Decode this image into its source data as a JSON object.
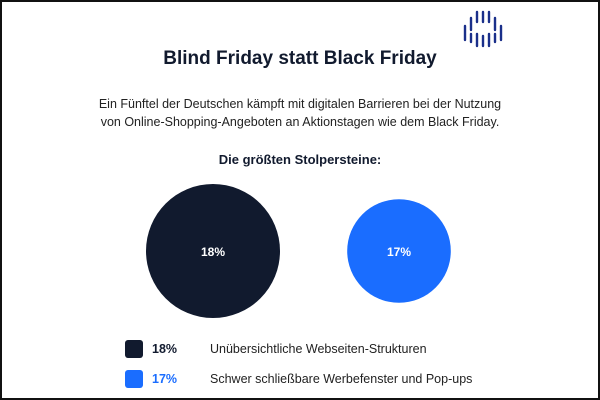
{
  "logo": {
    "name": "logo-bars"
  },
  "title": "Blind Friday statt Black Friday",
  "subtitle": [
    "Ein Fünftel der Deutschen kämpft mit digitalen Barrieren bei der Nutzung",
    "von Online-Shopping-Angeboten an Aktionstagen wie dem Black Friday."
  ],
  "chart_data": {
    "type": "bubble",
    "title": "Die größten Stolpersteine:",
    "unit": "%",
    "series": [
      {
        "label": "18%",
        "value": 18,
        "name": "Unübersichtliche Webseiten-Strukturen",
        "color": "#111a2e"
      },
      {
        "label": "17%",
        "value": 17,
        "name": "Schwer schließbare Werbefenster und Pop-ups",
        "color": "#1a6dff"
      }
    ],
    "legend": "bottom"
  }
}
